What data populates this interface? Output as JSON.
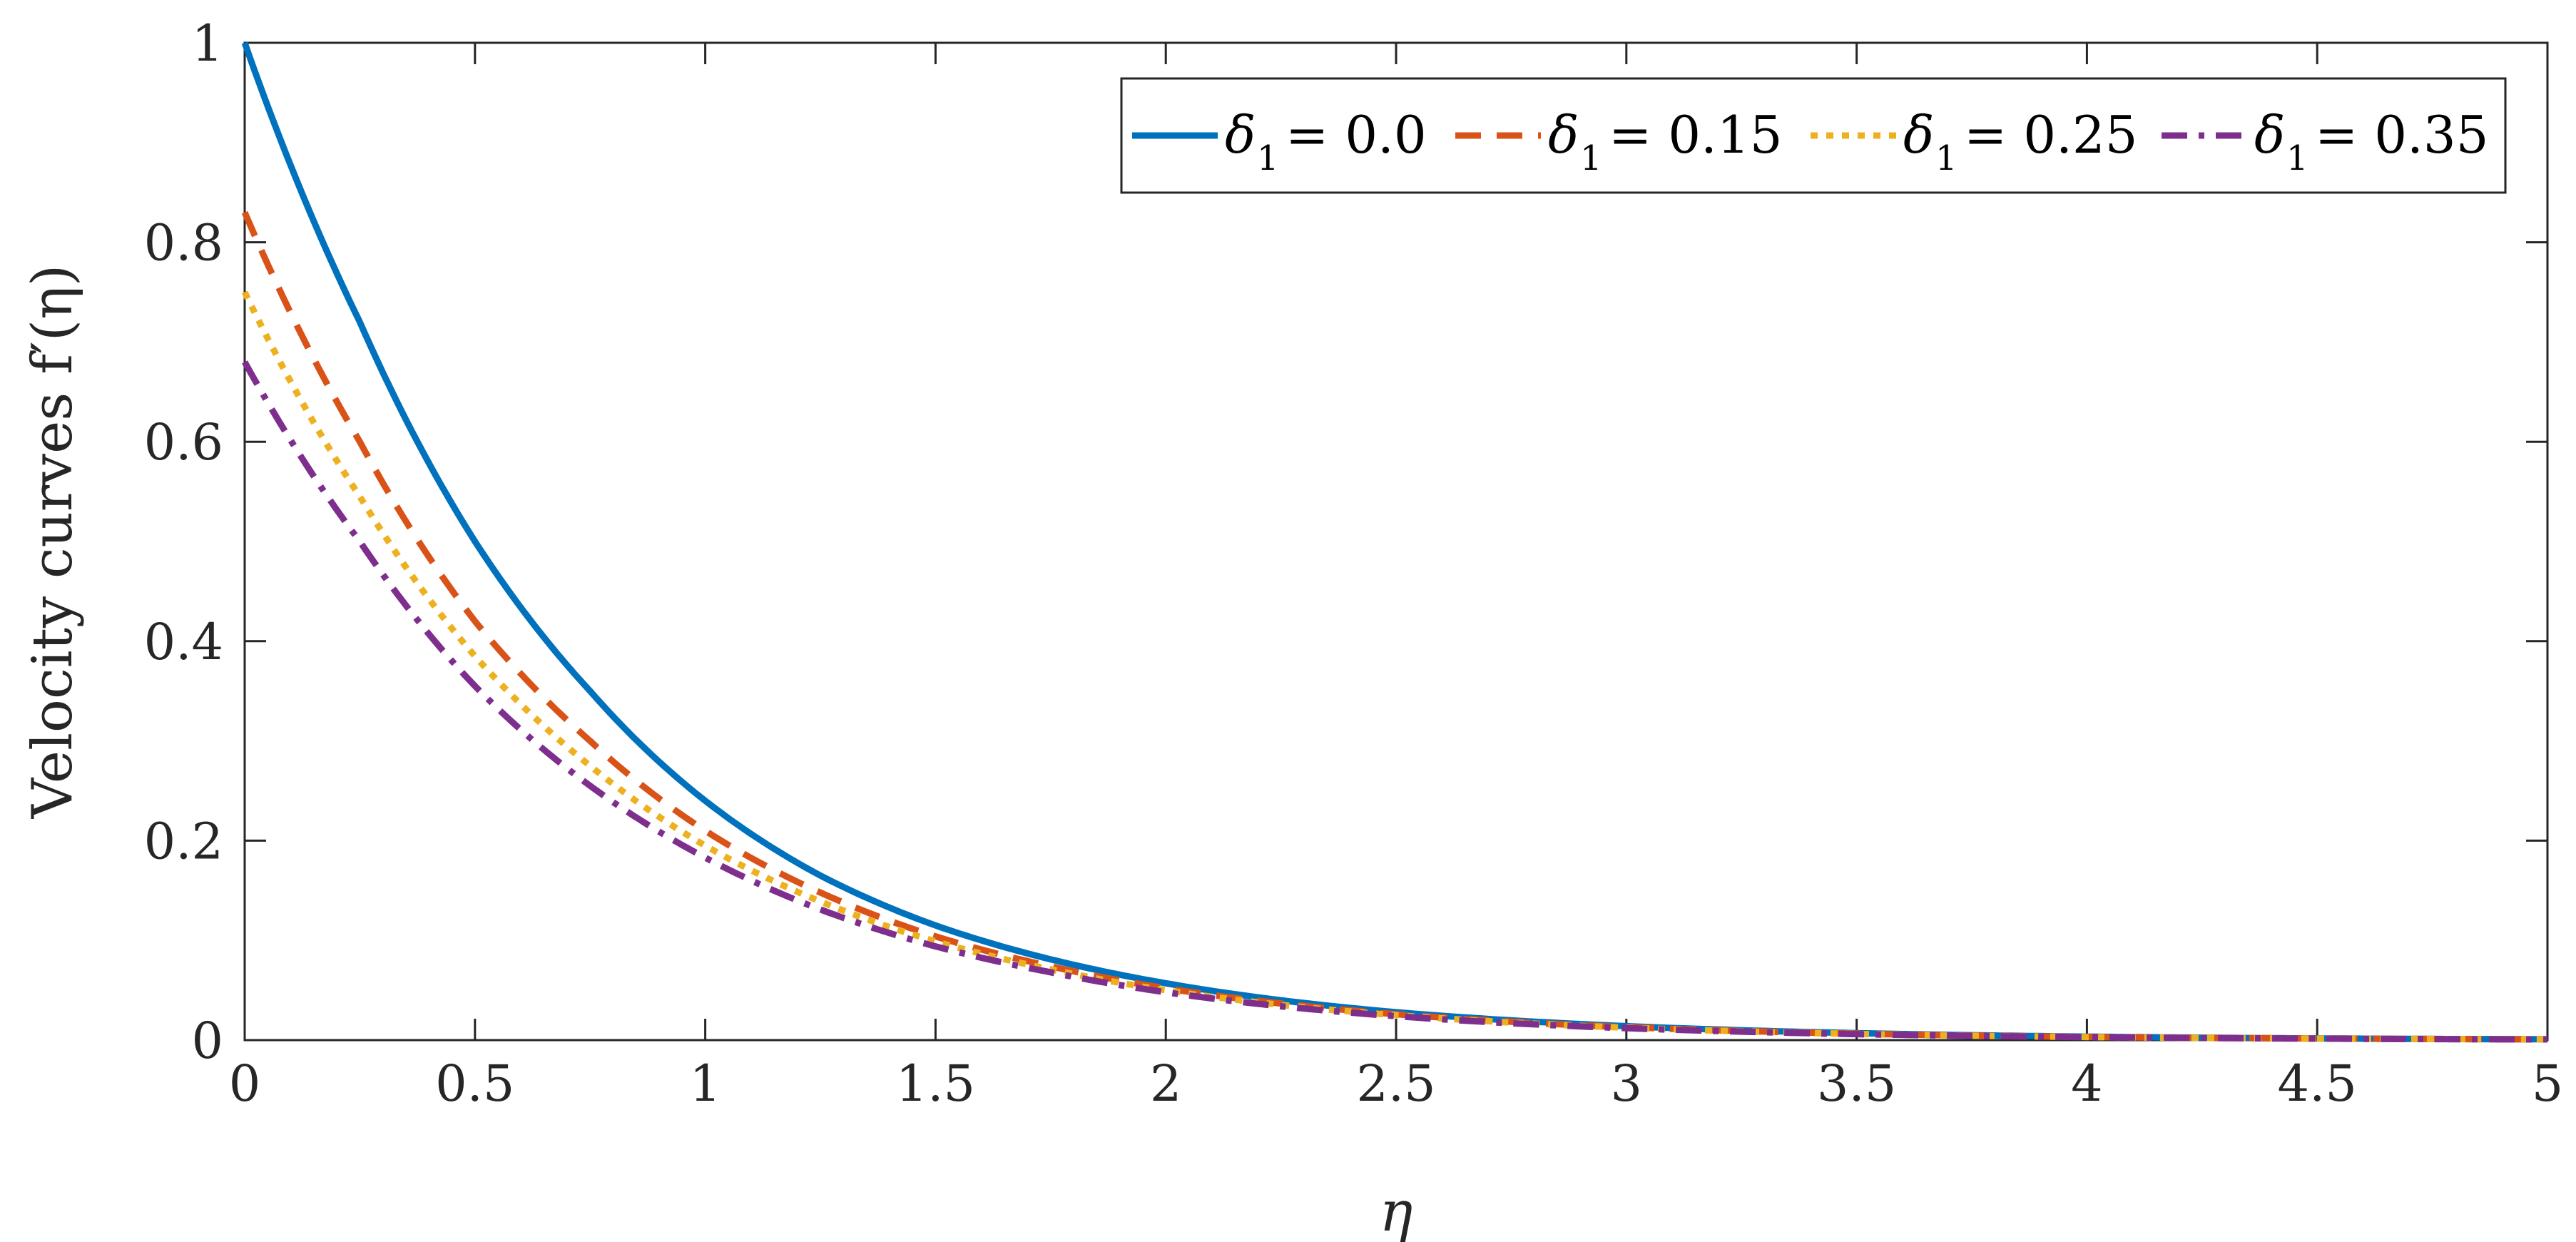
{
  "chart_data": {
    "type": "line",
    "title": "",
    "xlabel": "η",
    "ylabel": "Velocity curves f′(η)",
    "xlim": [
      0,
      5
    ],
    "ylim": [
      0,
      1
    ],
    "xticks": [
      0,
      0.5,
      1,
      1.5,
      2,
      2.5,
      3,
      3.5,
      4,
      4.5,
      5
    ],
    "xtick_labels": [
      "0",
      "0.5",
      "1",
      "1.5",
      "2",
      "2.5",
      "3",
      "3.5",
      "4",
      "4.5",
      "5"
    ],
    "yticks": [
      0,
      0.2,
      0.4,
      0.6,
      0.8,
      1
    ],
    "ytick_labels": [
      "0",
      "0.2",
      "0.4",
      "0.6",
      "0.8",
      "1"
    ],
    "grid": false,
    "legend_position": "top-right",
    "x": [
      0,
      0.25,
      0.5,
      0.75,
      1,
      1.25,
      1.5,
      1.75,
      2,
      2.5,
      3,
      3.5,
      4,
      4.5,
      5
    ],
    "series": [
      {
        "name": "δ1 = 0.0",
        "symbol": "δ",
        "subscript": "1",
        "value_text": "= 0.0",
        "color": "#0072BD",
        "style": "solid",
        "values": [
          1.0,
          0.72,
          0.5,
          0.35,
          0.24,
          0.165,
          0.115,
          0.081,
          0.057,
          0.028,
          0.014,
          0.007,
          0.0035,
          0.0017,
          0.0008
        ]
      },
      {
        "name": "δ1 = 0.15",
        "symbol": "δ",
        "subscript": "1",
        "value_text": "= 0.15",
        "color": "#D95319",
        "style": "dashed",
        "values": [
          0.83,
          0.6,
          0.42,
          0.3,
          0.21,
          0.148,
          0.104,
          0.074,
          0.052,
          0.026,
          0.013,
          0.0065,
          0.0032,
          0.0016,
          0.0008
        ]
      },
      {
        "name": "δ1 = 0.25",
        "symbol": "δ",
        "subscript": "1",
        "value_text": "= 0.25",
        "color": "#EDB120",
        "style": "dotted",
        "values": [
          0.75,
          0.545,
          0.385,
          0.275,
          0.195,
          0.139,
          0.099,
          0.071,
          0.05,
          0.025,
          0.0125,
          0.0062,
          0.0031,
          0.0015,
          0.0008
        ]
      },
      {
        "name": "δ1 = 0.35",
        "symbol": "δ",
        "subscript": "1",
        "value_text": "= 0.35",
        "color": "#7E2F8E",
        "style": "dashdot",
        "values": [
          0.68,
          0.5,
          0.355,
          0.255,
          0.183,
          0.131,
          0.094,
          0.068,
          0.048,
          0.024,
          0.012,
          0.006,
          0.003,
          0.0015,
          0.0007
        ]
      }
    ]
  }
}
